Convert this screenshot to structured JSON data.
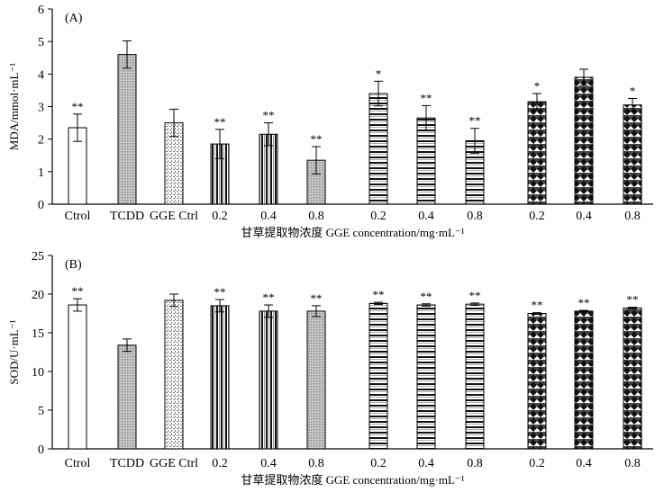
{
  "chart_data": [
    {
      "panel_label": "(A)",
      "type": "bar",
      "ylabel": "MDA/mmol·mL⁻¹",
      "xlabel": "甘草提取物浓度 GGE concentration/mg·mL⁻¹",
      "ylim": [
        0,
        6
      ],
      "yticks": [
        "0",
        "1",
        "2",
        "3",
        "4",
        "5",
        "6"
      ],
      "categories": [
        "Ctrol",
        "TCDD",
        "GGE Ctrl",
        "0.2",
        "0.4",
        "0.8",
        "0.2",
        "0.4",
        "0.8",
        "0.2",
        "0.4",
        "0.8"
      ],
      "values": [
        2.35,
        4.6,
        2.5,
        1.85,
        2.15,
        1.35,
        3.4,
        2.65,
        1.95,
        3.15,
        3.9,
        3.05
      ],
      "errors": [
        0.42,
        0.42,
        0.42,
        0.45,
        0.35,
        0.42,
        0.38,
        0.38,
        0.38,
        0.25,
        0.25,
        0.2
      ],
      "significance": [
        "**",
        "",
        "",
        "**",
        "**",
        "**",
        "*",
        "**",
        "**",
        "*",
        "",
        "*"
      ]
    },
    {
      "panel_label": "(B)",
      "type": "bar",
      "ylabel": "SOD/U·mL⁻¹",
      "xlabel": "甘草提取物浓度 GGE concentration/mg·mL⁻¹",
      "ylim": [
        0,
        25
      ],
      "yticks": [
        "0",
        "5",
        "10",
        "15",
        "20",
        "25"
      ],
      "categories": [
        "Ctrol",
        "TCDD",
        "GGE Ctrl",
        "0.2",
        "0.4",
        "0.8",
        "0.2",
        "0.4",
        "0.8",
        "0.2",
        "0.4",
        "0.8"
      ],
      "values": [
        18.6,
        13.4,
        19.2,
        18.5,
        17.8,
        17.8,
        18.8,
        18.6,
        18.7,
        17.5,
        17.8,
        18.2
      ],
      "errors": [
        0.8,
        0.8,
        0.8,
        0.8,
        0.8,
        0.7,
        0.15,
        0.15,
        0.15,
        0.1,
        0.1,
        0.1
      ],
      "significance": [
        "**",
        "",
        "",
        "**",
        "**",
        "**",
        "**",
        "**",
        "**",
        "**",
        "**",
        "**"
      ]
    }
  ],
  "bar_patterns": [
    "white",
    "dots-gray",
    "crosshatch-light",
    "vstripe-bold",
    "vstripe-bold",
    "dots-gray",
    "hstripe",
    "hstripe",
    "hstripe",
    "checker",
    "checker",
    "checker"
  ]
}
